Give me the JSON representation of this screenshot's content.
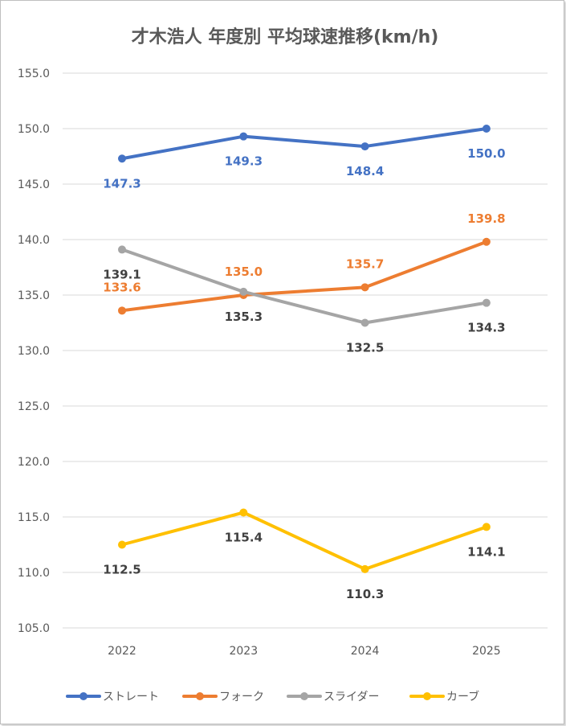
{
  "chart_data": {
    "type": "line",
    "title": "才木浩人 年度別 平均球速推移(km/h)",
    "categories": [
      "2022",
      "2023",
      "2024",
      "2025"
    ],
    "ylim": [
      105,
      155
    ],
    "yticks": [
      "105.0",
      "110.0",
      "115.0",
      "120.0",
      "125.0",
      "130.0",
      "135.0",
      "140.0",
      "145.0",
      "150.0",
      "155.0"
    ],
    "grid": true,
    "legend_position": "bottom",
    "series": [
      {
        "name": "ストレート",
        "values": [
          147.3,
          149.3,
          148.4,
          150.0
        ],
        "labels": [
          "147.3",
          "149.3",
          "148.4",
          "150.0"
        ],
        "color": "#4472C4",
        "label_color": "#4472C4",
        "label_pos": "below"
      },
      {
        "name": "フォーク",
        "values": [
          133.6,
          135.0,
          135.7,
          139.8
        ],
        "labels": [
          "133.6",
          "135.0",
          "135.7",
          "139.8"
        ],
        "color": "#ED7D31",
        "label_color": "#ED7D31",
        "label_pos": "above"
      },
      {
        "name": "スライダー",
        "values": [
          139.1,
          135.3,
          132.5,
          134.3
        ],
        "labels": [
          "139.1",
          "135.3",
          "132.5",
          "134.3"
        ],
        "color": "#A5A5A5",
        "label_color": "#404040",
        "label_pos": "below"
      },
      {
        "name": "カーブ",
        "values": [
          112.5,
          115.4,
          110.3,
          114.1
        ],
        "labels": [
          "112.5",
          "115.4",
          "110.3",
          "114.1"
        ],
        "color": "#FFC000",
        "label_color": "#404040",
        "label_pos": "below"
      }
    ]
  }
}
